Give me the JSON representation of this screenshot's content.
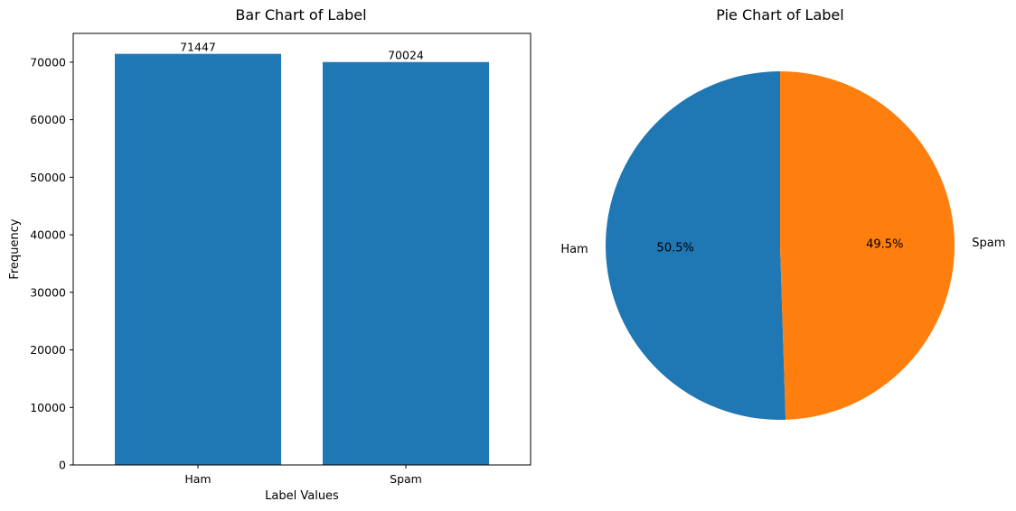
{
  "chart_data": [
    {
      "type": "bar",
      "title": "Bar Chart of Label",
      "categories": [
        "Ham",
        "Spam"
      ],
      "values": [
        71447,
        70024
      ],
      "data_labels": [
        "71447",
        "70024"
      ],
      "xlabel": "Label Values",
      "ylabel": "Frequency",
      "ylim": [
        0,
        75000
      ],
      "yticks": [
        0,
        10000,
        20000,
        30000,
        40000,
        50000,
        60000,
        70000
      ],
      "color": "#1f77b4",
      "grid": false
    },
    {
      "type": "pie",
      "title": "Pie Chart of Label",
      "labels": [
        "Ham",
        "Spam"
      ],
      "values": [
        71447,
        70024
      ],
      "percent_labels": [
        "50.5%",
        "49.5%"
      ],
      "colors": [
        "#1f77b4",
        "#ff7f0e"
      ]
    }
  ]
}
